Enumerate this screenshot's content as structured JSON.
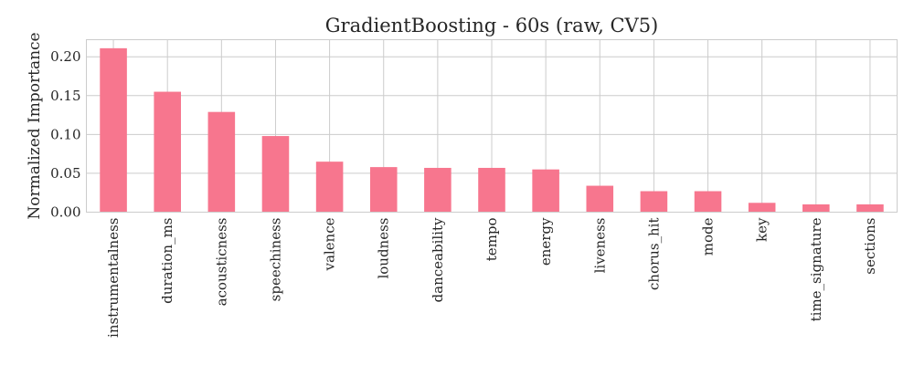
{
  "chart_data": {
    "type": "bar",
    "title": "GradientBoosting - 60s (raw, CV5)",
    "xlabel": "",
    "ylabel": "Normalized Importance",
    "categories": [
      "instrumentalness",
      "duration_ms",
      "acousticness",
      "speechiness",
      "valence",
      "loudness",
      "danceability",
      "tempo",
      "energy",
      "liveness",
      "chorus_hit",
      "mode",
      "key",
      "time_signature",
      "sections"
    ],
    "values": [
      0.211,
      0.155,
      0.129,
      0.098,
      0.065,
      0.058,
      0.057,
      0.057,
      0.055,
      0.034,
      0.027,
      0.027,
      0.012,
      0.01,
      0.01
    ],
    "ylim": [
      0,
      0.222
    ],
    "yticks": [
      0.0,
      0.05,
      0.1,
      0.15,
      0.2
    ],
    "ytick_labels": [
      "0.00",
      "0.05",
      "0.10",
      "0.15",
      "0.20"
    ],
    "bar_color": "#f7768e",
    "grid": true,
    "legend": "none"
  }
}
